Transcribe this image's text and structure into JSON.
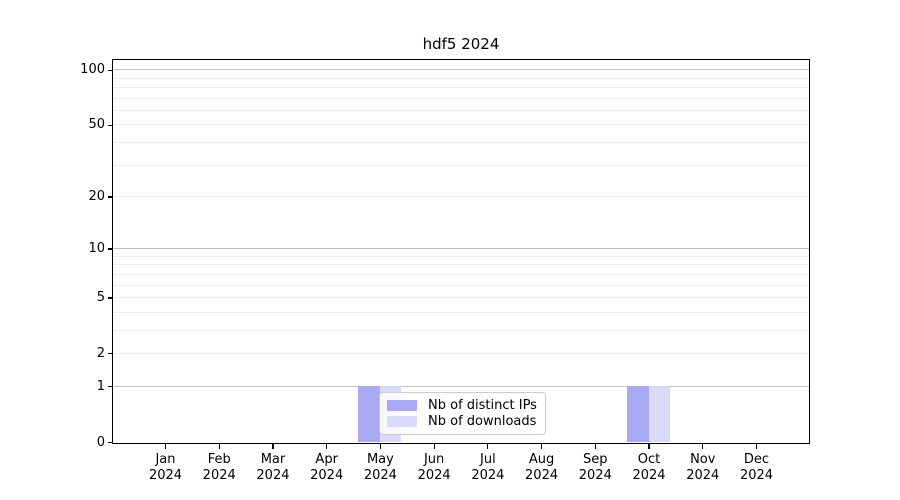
{
  "chart_data": {
    "type": "bar",
    "title": "hdf5 2024",
    "categories": [
      "Jan",
      "Feb",
      "Mar",
      "Apr",
      "May",
      "Jun",
      "Jul",
      "Aug",
      "Sep",
      "Oct",
      "Nov",
      "Dec"
    ],
    "x_year_label": "2024",
    "series": [
      {
        "name": "Nb of distinct IPs",
        "color": "#a9a9f4",
        "values": [
          0,
          0,
          0,
          0,
          1,
          0,
          0,
          0,
          0,
          1,
          0,
          0
        ]
      },
      {
        "name": "Nb of downloads",
        "color": "#d9d9f8",
        "values": [
          0,
          0,
          0,
          0,
          1,
          0,
          0,
          0,
          0,
          1,
          0,
          0
        ]
      }
    ],
    "yscale": "log1p",
    "ylim": [
      0,
      113
    ],
    "yticks": [
      {
        "value": 100,
        "label": "100"
      },
      {
        "value": 50,
        "label": "50"
      },
      {
        "value": 20,
        "label": "20"
      },
      {
        "value": 10,
        "label": "10"
      },
      {
        "value": 5,
        "label": "5"
      },
      {
        "value": 2,
        "label": "2"
      },
      {
        "value": 1,
        "label": "1"
      },
      {
        "value": 0,
        "label": "0"
      }
    ],
    "y_major_gridlines": [
      1,
      10,
      100
    ],
    "y_minor_gridlines": [
      2,
      3,
      4,
      5,
      6,
      7,
      8,
      9,
      20,
      30,
      40,
      50,
      60,
      70,
      80,
      90
    ],
    "grid": true,
    "legend_position": "lower center"
  },
  "colors": {
    "major_grid": "#c0c0c0",
    "minor_grid": "#ececec",
    "spine": "#000000",
    "text": "#000000",
    "legend_border": "#cccccc",
    "legend_background": "rgba(255,255,255,0.8)"
  }
}
